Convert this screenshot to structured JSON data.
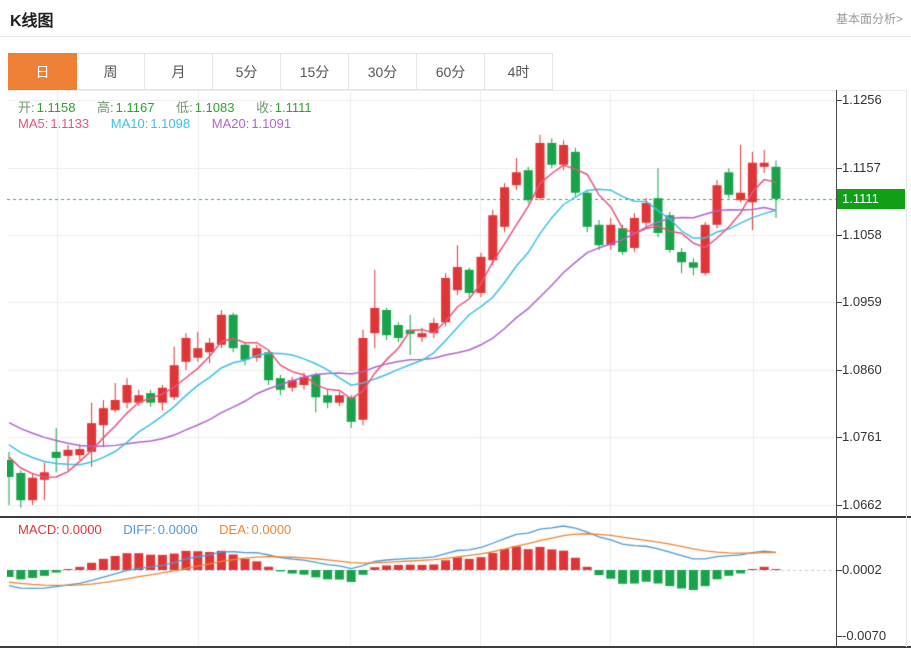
{
  "header": {
    "title": "K线图",
    "link_label": "基本面分析>"
  },
  "tabs": [
    {
      "id": "day",
      "label": "日",
      "active": true
    },
    {
      "id": "week",
      "label": "周",
      "active": false
    },
    {
      "id": "month",
      "label": "月",
      "active": false
    },
    {
      "id": "m5",
      "label": "5分",
      "active": false
    },
    {
      "id": "m15",
      "label": "15分",
      "active": false
    },
    {
      "id": "m30",
      "label": "30分",
      "active": false
    },
    {
      "id": "m60",
      "label": "60分",
      "active": false
    },
    {
      "id": "h4",
      "label": "4时",
      "active": false
    }
  ],
  "info": {
    "open_label": "开:",
    "open": "1.1158",
    "high_label": "高:",
    "high": "1.1167",
    "low_label": "低:",
    "low": "1.1083",
    "close_label": "收:",
    "close": "1.1111",
    "ma5_label": "MA5:",
    "ma5": "1.1133",
    "ma10_label": "MA10:",
    "ma10": "1.1098",
    "ma20_label": "MA20:",
    "ma20": "1.1091"
  },
  "macd_info": {
    "macd_label": "MACD:",
    "macd": "0.0000",
    "diff_label": "DIFF:",
    "diff": "0.0000",
    "dea_label": "DEA:",
    "dea": "0.0000"
  },
  "colors": {
    "up": "#e03537",
    "down": "#18a34b",
    "badge": "#0fa018",
    "last_price_line": "#3db03d",
    "ma5": "#e8547c",
    "ma10": "#3ec0e8",
    "ma20": "#b264cf",
    "diff": "#4f9bd8",
    "dea": "#ee8632",
    "grid": "#ececec",
    "ref_dotted": "#b9d0e2",
    "tab_active_bg": "#ef8136"
  },
  "chart_data": {
    "type": "candlestick",
    "title": "K线图",
    "period_selected": "日",
    "y_axis_ticks": [
      1.1256,
      1.1157,
      1.1058,
      1.0959,
      1.086,
      1.0761,
      1.0662
    ],
    "last_price": 1.1111,
    "overlays": [
      "MA5",
      "MA10",
      "MA20"
    ],
    "sub_chart": {
      "type": "MACD",
      "y_axis_ticks": [
        0.0002,
        -0.007
      ]
    },
    "candles": [
      [
        1.0728,
        1.074,
        1.0662,
        1.0703
      ],
      [
        1.0709,
        1.0713,
        1.0658,
        1.0669
      ],
      [
        1.0669,
        1.0709,
        1.0662,
        1.0702
      ],
      [
        1.0699,
        1.0724,
        1.0669,
        1.071
      ],
      [
        1.074,
        1.0775,
        1.071,
        1.0731
      ],
      [
        1.0734,
        1.075,
        1.0713,
        1.0743
      ],
      [
        1.0735,
        1.0751,
        1.0728,
        1.0744
      ],
      [
        1.074,
        1.0812,
        1.0718,
        1.0782
      ],
      [
        1.0779,
        1.0816,
        1.0747,
        1.0804
      ],
      [
        1.0801,
        1.0841,
        1.0798,
        1.0816
      ],
      [
        1.0812,
        1.0848,
        1.0804,
        1.0838
      ],
      [
        1.0812,
        1.0831,
        1.0807,
        1.0823
      ],
      [
        1.0826,
        1.0831,
        1.0806,
        1.0812
      ],
      [
        1.0812,
        1.0838,
        1.0801,
        1.0834
      ],
      [
        1.082,
        1.0894,
        1.0816,
        1.0867
      ],
      [
        1.0872,
        1.0914,
        1.086,
        1.0907
      ],
      [
        1.0878,
        1.0916,
        1.0872,
        1.0892
      ],
      [
        1.0886,
        1.0907,
        1.087,
        1.09
      ],
      [
        1.0897,
        1.0948,
        1.0892,
        1.0941
      ],
      [
        1.0941,
        1.0944,
        1.0886,
        1.0892
      ],
      [
        1.0897,
        1.0901,
        1.0867,
        1.0875
      ],
      [
        1.0878,
        1.0897,
        1.0872,
        1.0892
      ],
      [
        1.0886,
        1.0889,
        1.0838,
        1.0845
      ],
      [
        1.0848,
        1.0853,
        1.0823,
        1.0831
      ],
      [
        1.0834,
        1.085,
        1.0828,
        1.0845
      ],
      [
        1.0838,
        1.0856,
        1.0831,
        1.085
      ],
      [
        1.0853,
        1.0856,
        1.0798,
        1.082
      ],
      [
        1.0823,
        1.0831,
        1.0804,
        1.0812
      ],
      [
        1.0812,
        1.0828,
        1.0807,
        1.0823
      ],
      [
        1.082,
        1.0823,
        1.0775,
        1.0784
      ],
      [
        1.0787,
        1.0919,
        1.0779,
        1.0907
      ],
      [
        1.0914,
        1.1007,
        1.0892,
        1.0951
      ],
      [
        1.0948,
        1.0951,
        1.0904,
        1.0911
      ],
      [
        1.0926,
        1.093,
        1.0901,
        1.0907
      ],
      [
        1.0919,
        1.0941,
        1.0882,
        1.0913
      ],
      [
        1.0908,
        1.0922,
        1.0901,
        1.0914
      ],
      [
        1.0914,
        1.0936,
        1.0907,
        1.0929
      ],
      [
        1.093,
        1.1002,
        1.0924,
        1.0995
      ],
      [
        1.0977,
        1.1043,
        1.097,
        1.1011
      ],
      [
        1.1007,
        1.101,
        1.0967,
        1.0973
      ],
      [
        1.0973,
        1.1032,
        1.0967,
        1.1026
      ],
      [
        1.1021,
        1.1095,
        1.1014,
        1.1087
      ],
      [
        1.107,
        1.1134,
        1.1062,
        1.1128
      ],
      [
        1.1131,
        1.1171,
        1.1124,
        1.115
      ],
      [
        1.1153,
        1.1158,
        1.1105,
        1.1109
      ],
      [
        1.1112,
        1.1205,
        1.1109,
        1.1193
      ],
      [
        1.1193,
        1.12,
        1.1156,
        1.1161
      ],
      [
        1.1161,
        1.1197,
        1.1153,
        1.119
      ],
      [
        1.118,
        1.1186,
        1.1115,
        1.112
      ],
      [
        1.112,
        1.1124,
        1.1062,
        1.107
      ],
      [
        1.1073,
        1.108,
        1.1036,
        1.1043
      ],
      [
        1.1043,
        1.1083,
        1.1036,
        1.1073
      ],
      [
        1.1068,
        1.1073,
        1.1029,
        1.1033
      ],
      [
        1.1039,
        1.109,
        1.1033,
        1.1083
      ],
      [
        1.1076,
        1.1112,
        1.1068,
        1.1105
      ],
      [
        1.1112,
        1.1156,
        1.1055,
        1.1061
      ],
      [
        1.1087,
        1.1092,
        1.1032,
        1.1036
      ],
      [
        1.1033,
        1.1039,
        1.1002,
        1.1018
      ],
      [
        1.1018,
        1.1024,
        1.0999,
        1.101
      ],
      [
        1.1002,
        1.1077,
        1.0999,
        1.1073
      ],
      [
        1.1073,
        1.1139,
        1.1068,
        1.1131
      ],
      [
        1.115,
        1.1156,
        1.1112,
        1.1117
      ],
      [
        1.1109,
        1.119,
        1.1106,
        1.112
      ],
      [
        1.1106,
        1.118,
        1.1065,
        1.1164
      ],
      [
        1.1158,
        1.1183,
        1.1149,
        1.1164
      ],
      [
        1.1158,
        1.1167,
        1.1083,
        1.1111
      ]
    ]
  }
}
